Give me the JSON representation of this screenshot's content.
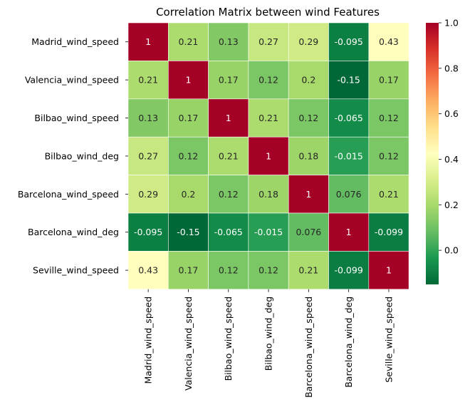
{
  "chart_data": {
    "type": "heatmap",
    "title": "Correlation Matrix between wind Features",
    "rows": [
      "Madrid_wind_speed",
      "Valencia_wind_speed",
      "Bilbao_wind_speed",
      "Bilbao_wind_deg",
      "Barcelona_wind_speed",
      "Barcelona_wind_deg",
      "Seville_wind_speed"
    ],
    "columns": [
      "Madrid_wind_speed",
      "Valencia_wind_speed",
      "Bilbao_wind_speed",
      "Bilbao_wind_deg",
      "Barcelona_wind_speed",
      "Barcelona_wind_deg",
      "Seville_wind_speed"
    ],
    "values": [
      [
        1,
        0.21,
        0.13,
        0.27,
        0.29,
        -0.095,
        0.43
      ],
      [
        0.21,
        1,
        0.17,
        0.12,
        0.2,
        -0.15,
        0.17
      ],
      [
        0.13,
        0.17,
        1,
        0.21,
        0.12,
        -0.065,
        0.12
      ],
      [
        0.27,
        0.12,
        0.21,
        1,
        0.18,
        -0.015,
        0.12
      ],
      [
        0.29,
        0.2,
        0.12,
        0.18,
        1,
        0.076,
        0.21
      ],
      [
        -0.095,
        -0.15,
        -0.065,
        -0.015,
        0.076,
        1,
        -0.099
      ],
      [
        0.43,
        0.17,
        0.12,
        0.12,
        0.21,
        -0.099,
        1
      ]
    ],
    "labels": [
      [
        "1",
        "0.21",
        "0.13",
        "0.27",
        "0.29",
        "-0.095",
        "0.43"
      ],
      [
        "0.21",
        "1",
        "0.17",
        "0.12",
        "0.2",
        "-0.15",
        "0.17"
      ],
      [
        "0.13",
        "0.17",
        "1",
        "0.21",
        "0.12",
        "-0.065",
        "0.12"
      ],
      [
        "0.27",
        "0.12",
        "0.21",
        "1",
        "0.18",
        "-0.015",
        "0.12"
      ],
      [
        "0.29",
        "0.2",
        "0.12",
        "0.18",
        "1",
        "0.076",
        "0.21"
      ],
      [
        "-0.095",
        "-0.15",
        "-0.065",
        "-0.015",
        "0.076",
        "1",
        "-0.099"
      ],
      [
        "0.43",
        "0.17",
        "0.12",
        "0.12",
        "0.21",
        "-0.099",
        "1"
      ]
    ],
    "colormap": "RdYlGn_r",
    "vmin": -0.15,
    "vmax": 1.0,
    "colorbar_ticks": [
      1.0,
      0.8,
      0.6,
      0.4,
      0.2,
      0.0
    ],
    "colorbar_tick_labels": [
      "1.0",
      "0.8",
      "0.6",
      "0.4",
      "0.2",
      "0.0"
    ],
    "cell_border_color": "#ffffff"
  }
}
